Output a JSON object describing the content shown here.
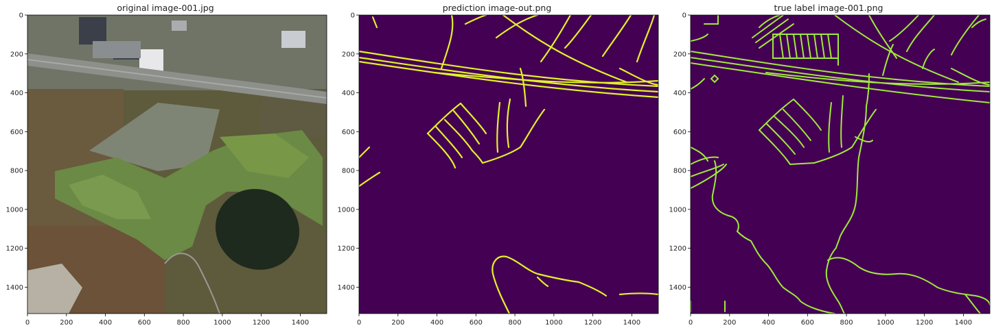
{
  "colors": {
    "background_mask": "#440154",
    "road_line": "#e3f22a",
    "road_line_true": "#a0ea3c",
    "axis": "#000000"
  },
  "chart_data": [
    {
      "type": "heatmap",
      "title": "original image-001.jpg",
      "content": "aerial-photo",
      "xlim": [
        0,
        1536
      ],
      "ylim": [
        1536,
        0
      ],
      "xticks": [
        0,
        200,
        400,
        600,
        800,
        1000,
        1200,
        1400
      ],
      "yticks": [
        0,
        200,
        400,
        600,
        800,
        1000,
        1200,
        1400
      ]
    },
    {
      "type": "heatmap",
      "title": "prediction image-out.png",
      "content": "road-mask",
      "xlim": [
        0,
        1536
      ],
      "ylim": [
        1536,
        0
      ],
      "xticks": [
        0,
        200,
        400,
        600,
        800,
        1000,
        1200,
        1400
      ],
      "yticks": [
        0,
        200,
        400,
        600,
        800,
        1000,
        1200,
        1400
      ]
    },
    {
      "type": "heatmap",
      "title": "true label image-001.png",
      "content": "road-mask",
      "xlim": [
        0,
        1536
      ],
      "ylim": [
        1536,
        0
      ],
      "xticks": [
        0,
        200,
        400,
        600,
        800,
        1000,
        1200,
        1400
      ],
      "yticks": [
        0,
        200,
        400,
        600,
        800,
        1000,
        1200,
        1400
      ]
    }
  ]
}
